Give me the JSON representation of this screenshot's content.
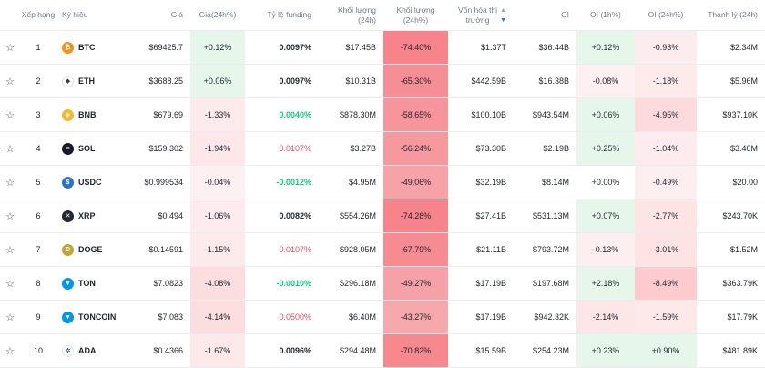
{
  "headers": {
    "rank": "Xếp hạng",
    "symbol": "Ký hiệu",
    "price": "Giá",
    "price_change": "Giá(24h%)",
    "funding": "Tỷ lệ funding",
    "volume": "Khối lượng (24h)",
    "volume_change": "Khối lượng (24h%)",
    "market_cap_line1": "Vốn hóa thị",
    "market_cap_line2": "trường",
    "oi": "OI",
    "oi_1h": "OI (1h%)",
    "oi_24h": "OI (24h%)",
    "liquidation": "Thanh lý (24h)"
  },
  "rows": [
    {
      "rank": "1",
      "symbol": "BTC",
      "icon": "bitcoin-icon",
      "icon_color": "#f7931a",
      "glyph": "₿",
      "price": "$69425.7",
      "price_change": "+0.12%",
      "funding": "0.0097%",
      "funding_style": "neutral",
      "volume": "$17.45B",
      "volume_change": "-74.40%",
      "market_cap": "$1.37T",
      "oi": "$36.44B",
      "oi_1h": "+0.12%",
      "oi_24h": "-0.93%",
      "liquidation": "$2.34M"
    },
    {
      "rank": "2",
      "symbol": "ETH",
      "icon": "ethereum-icon",
      "icon_color": "#ffffff",
      "glyph": "◆",
      "glyph_color": "#3c3c3d",
      "price": "$3688.25",
      "price_change": "+0.06%",
      "funding": "0.0097%",
      "funding_style": "neutral",
      "volume": "$10.31B",
      "volume_change": "-65.30%",
      "market_cap": "$442.59B",
      "oi": "$16.38B",
      "oi_1h": "-0.08%",
      "oi_24h": "-1.18%",
      "liquidation": "$5.96M"
    },
    {
      "rank": "3",
      "symbol": "BNB",
      "icon": "bnb-icon",
      "icon_color": "#f3ba2f",
      "glyph": "◈",
      "price": "$679.69",
      "price_change": "-1.33%",
      "funding": "0.0040%",
      "funding_style": "positive",
      "volume": "$878.30M",
      "volume_change": "-58.65%",
      "market_cap": "$100.10B",
      "oi": "$943.54M",
      "oi_1h": "+0.06%",
      "oi_24h": "-4.95%",
      "liquidation": "$937.10K"
    },
    {
      "rank": "4",
      "symbol": "SOL",
      "icon": "solana-icon",
      "icon_color": "#1a1a2e",
      "glyph": "≡",
      "price": "$159.302",
      "price_change": "-1.94%",
      "funding": "0.0107%",
      "funding_style": "negative",
      "volume": "$3.27B",
      "volume_change": "-56.24%",
      "market_cap": "$73.30B",
      "oi": "$2.19B",
      "oi_1h": "+0.25%",
      "oi_24h": "-1.04%",
      "liquidation": "$3.40M"
    },
    {
      "rank": "5",
      "symbol": "USDC",
      "icon": "usdc-icon",
      "icon_color": "#2775ca",
      "glyph": "$",
      "price": "$0.999534",
      "price_change": "-0.04%",
      "funding": "-0.0012%",
      "funding_style": "positive",
      "volume": "$4.95M",
      "volume_change": "-49.06%",
      "market_cap": "$32.19B",
      "oi": "$8.14M",
      "oi_1h": "+0.00%",
      "oi_24h": "-0.49%",
      "liquidation": "$20.00"
    },
    {
      "rank": "6",
      "symbol": "XRP",
      "icon": "xrp-icon",
      "icon_color": "#23292f",
      "glyph": "✕",
      "price": "$0.494",
      "price_change": "-1.06%",
      "funding": "0.0082%",
      "funding_style": "neutral",
      "volume": "$554.26M",
      "volume_change": "-74.28%",
      "market_cap": "$27.41B",
      "oi": "$531.13M",
      "oi_1h": "+0.07%",
      "oi_24h": "-2.77%",
      "liquidation": "$243.70K"
    },
    {
      "rank": "7",
      "symbol": "DOGE",
      "icon": "dogecoin-icon",
      "icon_color": "#c2a633",
      "glyph": "D",
      "price": "$0.14591",
      "price_change": "-1.15%",
      "funding": "0.0107%",
      "funding_style": "negative",
      "volume": "$928.05M",
      "volume_change": "-67.79%",
      "market_cap": "$21.11B",
      "oi": "$793.72M",
      "oi_1h": "-0.13%",
      "oi_24h": "-3.01%",
      "liquidation": "$1.52M"
    },
    {
      "rank": "8",
      "symbol": "TON",
      "icon": "ton-icon",
      "icon_color": "#0098ea",
      "glyph": "▼",
      "price": "$7.0823",
      "price_change": "-4.08%",
      "funding": "-0.0010%",
      "funding_style": "positive",
      "volume": "$296.18M",
      "volume_change": "-49.27%",
      "market_cap": "$17.19B",
      "oi": "$197.68M",
      "oi_1h": "+2.18%",
      "oi_24h": "-8.49%",
      "liquidation": "$363.79K"
    },
    {
      "rank": "9",
      "symbol": "TONCOIN",
      "icon": "toncoin-icon",
      "icon_color": "#0098ea",
      "glyph": "▼",
      "price": "$7.083",
      "price_change": "-4.14%",
      "funding": "0.0500%",
      "funding_style": "negative",
      "volume": "$6.40M",
      "volume_change": "-43.27%",
      "market_cap": "$17.19B",
      "oi": "$942.32K",
      "oi_1h": "-2.14%",
      "oi_24h": "-1.59%",
      "liquidation": "$17.79K"
    },
    {
      "rank": "10",
      "symbol": "ADA",
      "icon": "cardano-icon",
      "icon_color": "#ffffff",
      "glyph": "✲",
      "glyph_color": "#0033ad",
      "price": "$0.4366",
      "price_change": "-1.67%",
      "funding": "0.0096%",
      "funding_style": "neutral",
      "volume": "$294.48M",
      "volume_change": "-70.82%",
      "market_cap": "$15.59B",
      "oi": "$254.23M",
      "oi_1h": "+0.23%",
      "oi_24h": "+0.90%",
      "liquidation": "$481.89K"
    }
  ],
  "colors": {
    "positive_text": "#0ecb81",
    "negative_text": "#f6465d",
    "heat_positive": "#e6f6ea",
    "heat_negative": "#fdeced"
  }
}
